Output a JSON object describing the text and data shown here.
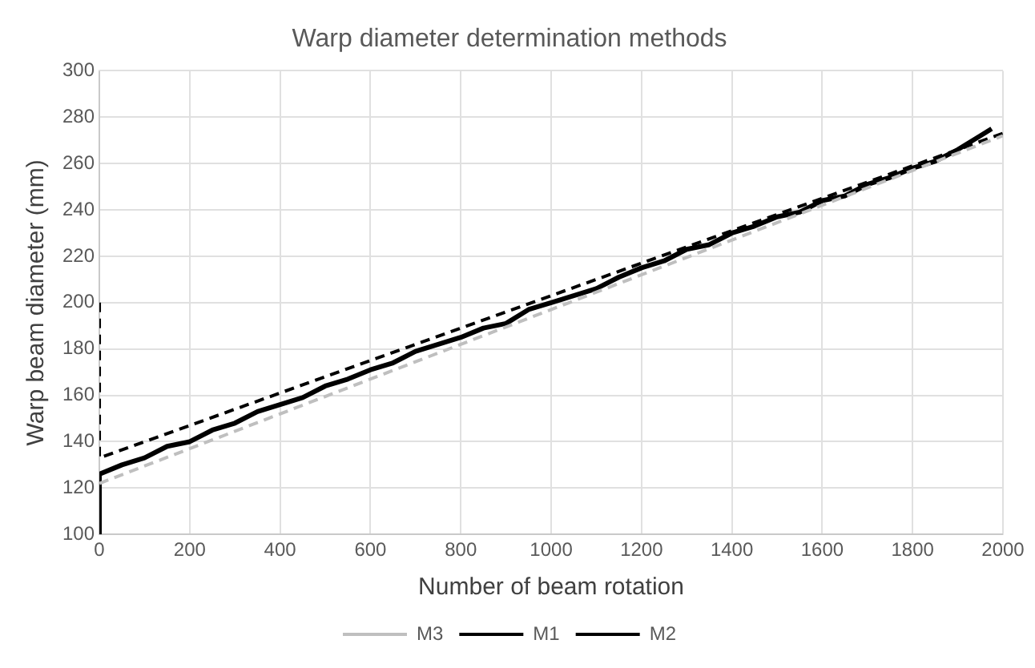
{
  "chart_data": {
    "type": "line",
    "title": "Warp diameter determination methods",
    "xlabel": "Number of beam rotation",
    "ylabel": "Warp beam diameter (mm)",
    "xlim": [
      0,
      2000
    ],
    "xticks": [
      0,
      200,
      400,
      600,
      800,
      1000,
      1200,
      1400,
      1600,
      1800,
      2000
    ],
    "ylim": [
      100,
      300
    ],
    "yticks": [
      100,
      120,
      140,
      160,
      180,
      200,
      220,
      240,
      260,
      280,
      300
    ],
    "grid": true,
    "legend": "bottom",
    "marker": "none",
    "series": [
      {
        "name": "M3",
        "color": "#bfbfbf",
        "line_style": "dashed",
        "x": [
          0,
          2000
        ],
        "values": [
          122,
          272
        ]
      },
      {
        "name": "M1",
        "color": "#000000",
        "line_style": "solid",
        "x": [
          0,
          0,
          50,
          100,
          150,
          200,
          250,
          300,
          350,
          400,
          450,
          500,
          550,
          600,
          650,
          700,
          750,
          800,
          850,
          900,
          950,
          1000,
          1050,
          1100,
          1150,
          1200,
          1250,
          1300,
          1350,
          1400,
          1450,
          1500,
          1550,
          1600,
          1650,
          1700,
          1750,
          1800,
          1850,
          1900,
          1950,
          1975
        ],
        "values": [
          100,
          126,
          130,
          133,
          138,
          140,
          145,
          148,
          153,
          156,
          159,
          164,
          167,
          171,
          174,
          179,
          182,
          185,
          189,
          191,
          197,
          200,
          203,
          206,
          211,
          215,
          218,
          223,
          225,
          230,
          233,
          237,
          239,
          244,
          246,
          251,
          254,
          258,
          261,
          266,
          272,
          275
        ]
      },
      {
        "name": "M2",
        "color": "#000000",
        "line_style": "dashed",
        "x": [
          0,
          0,
          2000
        ],
        "values": [
          200,
          133,
          273
        ]
      }
    ]
  }
}
